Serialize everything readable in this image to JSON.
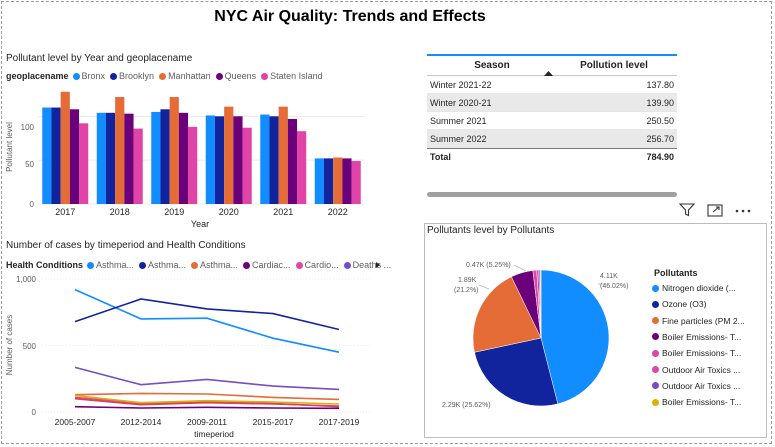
{
  "title": "NYC Air Quality: Trends and Effects",
  "bar_chart": {
    "title": "Pollutant level by Year and geoplacename",
    "legend_title": "geoplacename",
    "ylabel": "Pollutant level",
    "xlabel": "Year",
    "y_ticks": [
      "100",
      "50",
      "0"
    ],
    "chart_data": {
      "type": "bar",
      "categories": [
        "2017",
        "2018",
        "2019",
        "2020",
        "2021",
        "2022"
      ],
      "ylim": [
        0,
        130
      ],
      "series": [
        {
          "name": "Bronx",
          "color": "#118dff",
          "values": [
            110,
            104,
            105,
            101,
            102,
            52
          ]
        },
        {
          "name": "Brooklyn",
          "color": "#12239e",
          "values": [
            110,
            104,
            108,
            100,
            100,
            52
          ]
        },
        {
          "name": "Manhattan",
          "color": "#e66c37",
          "values": [
            128,
            122,
            122,
            111,
            111,
            53
          ]
        },
        {
          "name": "Queens",
          "color": "#6b007b",
          "values": [
            108,
            103,
            104,
            100,
            97,
            52
          ]
        },
        {
          "name": "Staten Island",
          "color": "#e044a7",
          "values": [
            92,
            86,
            88,
            87,
            83,
            49
          ]
        }
      ]
    }
  },
  "line_chart": {
    "title": "Number of cases by timeperiod and Health Conditions",
    "legend_title": "Health Conditions",
    "ylabel": "Number of cases",
    "xlabel": "timeperiod",
    "y_ticks": [
      "1,000",
      "500",
      "0"
    ],
    "chart_data": {
      "type": "line",
      "categories": [
        "2005-2007",
        "2012-2014",
        "2009-2011",
        "2015-2017",
        "2017-2019"
      ],
      "ylim": [
        0,
        1000
      ],
      "series": [
        {
          "name": "Asthma...",
          "color": "#118dff",
          "values": [
            920,
            700,
            705,
            555,
            450
          ]
        },
        {
          "name": "Asthma...",
          "color": "#12239e",
          "values": [
            680,
            850,
            775,
            740,
            620
          ]
        },
        {
          "name": "Asthma...",
          "color": "#e66c37",
          "values": [
            130,
            140,
            135,
            110,
            95
          ]
        },
        {
          "name": "Cardiac...",
          "color": "#6b007b",
          "values": [
            40,
            30,
            35,
            30,
            28
          ]
        },
        {
          "name": "Cardio...",
          "color": "#e044a7",
          "values": [
            110,
            65,
            75,
            65,
            40
          ]
        },
        {
          "name": "Deaths ...",
          "color": "#744ec2",
          "values": [
            335,
            205,
            245,
            195,
            170
          ]
        },
        {
          "name": "",
          "color": "#d9b300",
          "values": [
            125,
            70,
            85,
            75,
            60
          ]
        },
        {
          "name": "",
          "color": "#d64550",
          "values": [
            100,
            55,
            70,
            60,
            45
          ]
        }
      ]
    }
  },
  "table": {
    "headers": [
      "Season",
      "Pollution level"
    ],
    "rows": [
      {
        "season": "Winter 2021-22",
        "level": "137.80"
      },
      {
        "season": "Winter 2020-21",
        "level": "139.90"
      },
      {
        "season": "Summer 2021",
        "level": "250.50"
      },
      {
        "season": "Summer 2022",
        "level": "256.70"
      }
    ],
    "total_label": "Total",
    "total_value": "784.90"
  },
  "pie_chart": {
    "title": "Pollutants level by Pollutants",
    "legend_title": "Pollutants",
    "chart_data": {
      "type": "pie",
      "labels": [
        "Nitrogen dioxide (...",
        "Ozone (O3)",
        "Fine particles (PM 2...",
        "Boiler Emissions- T...",
        "Boiler Emissions- T...",
        "Outdoor Air Toxics ...",
        "Outdoor Air Toxics ...",
        "Boiler Emissions- T..."
      ],
      "values": [
        46.02,
        25.62,
        21.2,
        5.25,
        0.9,
        0.5,
        0.3,
        0.21
      ],
      "colors": [
        "#118dff",
        "#12239e",
        "#e66c37",
        "#6b007b",
        "#e044a7",
        "#e044a7",
        "#744ec2",
        "#d9b300"
      ]
    },
    "data_labels": {
      "nitrogen_value": "4.11K",
      "nitrogen_pct": "(46.02%)",
      "ozone": "2.29K (25.62%)",
      "fine_value": "1.89K",
      "fine_pct": "(21.2%)",
      "boiler": "0.47K (5.25%)"
    }
  },
  "icons": [
    "filter-icon",
    "focus-mode-icon",
    "more-options-icon",
    "chevron-right-icon"
  ]
}
